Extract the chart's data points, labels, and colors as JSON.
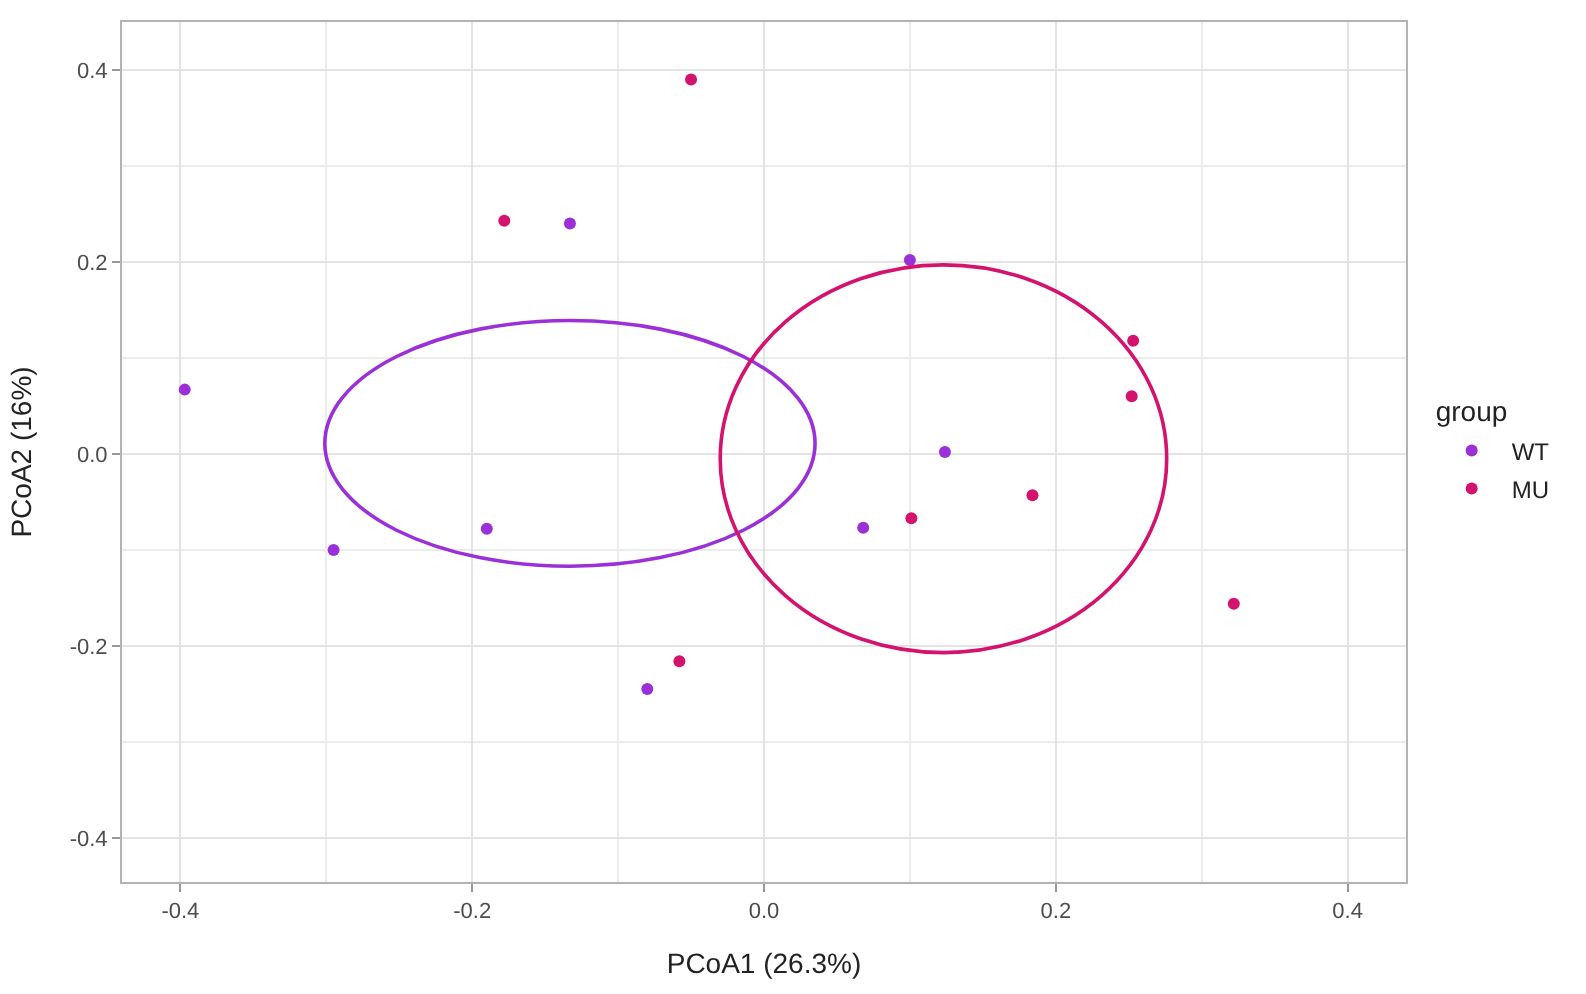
{
  "chart_data": {
    "type": "scatter",
    "xlabel": "PCoA1 (26.3%)",
    "ylabel": "PCoA2 (16%)",
    "legend_title": "group",
    "xlim": [
      -0.44,
      0.44
    ],
    "ylim": [
      -0.446,
      0.45
    ],
    "xticks": [
      -0.4,
      -0.2,
      {
        "value": 0,
        "label": "0.0"
      },
      0.2,
      0.4
    ],
    "yticks": [
      -0.4,
      -0.2,
      {
        "value": 0,
        "label": "0.0"
      },
      0.2,
      0.4
    ],
    "grid": true,
    "legend": "right",
    "marker": "circle",
    "series": [
      {
        "name": "WT",
        "color": "#9b30d9",
        "x": [
          -0.397,
          -0.295,
          -0.19,
          -0.133,
          -0.08,
          0.1,
          0.124,
          0.068
        ],
        "values": [
          0.067,
          -0.1,
          -0.078,
          0.24,
          -0.245,
          0.202,
          0.002,
          -0.077
        ]
      },
      {
        "name": "MU",
        "color": "#d4136f",
        "x": [
          -0.178,
          -0.05,
          -0.058,
          0.101,
          0.184,
          0.253,
          0.252,
          0.322
        ],
        "values": [
          0.243,
          0.39,
          -0.216,
          -0.067,
          -0.043,
          0.118,
          0.06,
          -0.156
        ]
      }
    ]
  }
}
